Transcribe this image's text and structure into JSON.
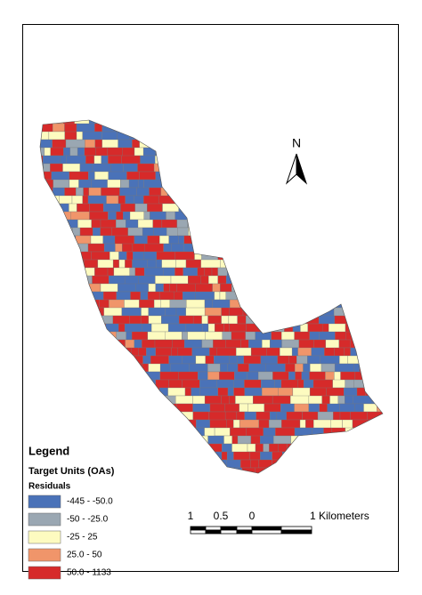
{
  "legend": {
    "title": "Legend",
    "layer": "Target Units (OAs)",
    "field": "Residuals",
    "classes": [
      {
        "label": "-445 - -50.0",
        "color": "#4a72b8"
      },
      {
        "label": "-50 - -25.0",
        "color": "#9aa7b2"
      },
      {
        "label": "-25 - 25",
        "color": "#fdfbc0"
      },
      {
        "label": "25.0 - 50",
        "color": "#f0956a"
      },
      {
        "label": "50.0 - 1133",
        "color": "#d62a2a"
      }
    ]
  },
  "north_arrow": "N",
  "scale_bar": {
    "labels": [
      "1",
      "0.5",
      "0",
      "1 Kilometers"
    ]
  }
}
